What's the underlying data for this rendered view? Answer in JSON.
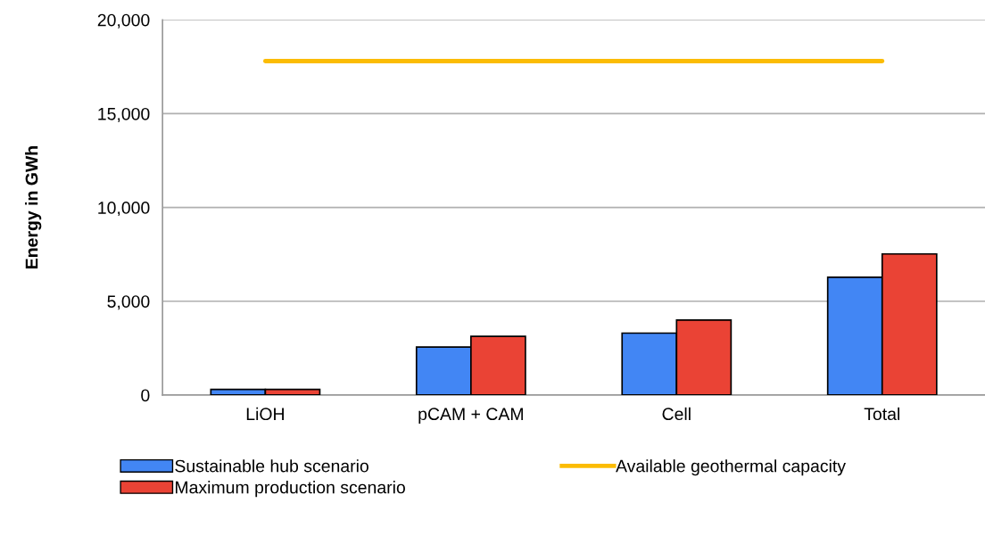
{
  "chart_data": {
    "type": "bar",
    "ylabel": "Energy in GWh",
    "categories": [
      "LiOH",
      "pCAM + CAM",
      "Cell",
      "Total"
    ],
    "series": [
      {
        "name": "Sustainable hub scenario",
        "color": "#4286f4",
        "values": [
          300,
          2560,
          3300,
          6280
        ]
      },
      {
        "name": "Maximum production scenario",
        "color": "#ea4335",
        "values": [
          300,
          3130,
          4000,
          7520
        ]
      },
      {
        "name": "Available geothermal capacity",
        "type": "line",
        "color": "#fbbc04",
        "values": [
          17800,
          17800,
          17800,
          17800
        ]
      }
    ],
    "ylim": [
      0,
      20000
    ],
    "yticks": [
      {
        "value": 0,
        "label": "0"
      },
      {
        "value": 5000,
        "label": "5,000"
      },
      {
        "value": 10000,
        "label": "10,000"
      },
      {
        "value": 15000,
        "label": "15,000"
      },
      {
        "value": 20000,
        "label": "20,000"
      }
    ],
    "grid": "y",
    "legend": "bottom"
  }
}
